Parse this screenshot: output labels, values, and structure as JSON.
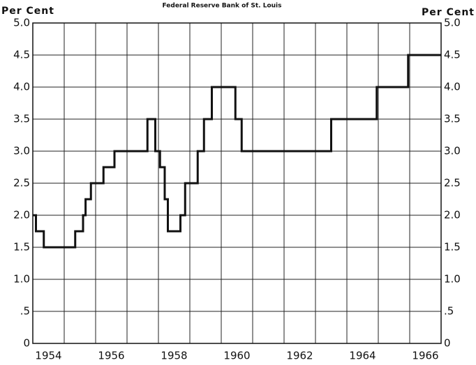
{
  "chart_data": {
    "type": "step",
    "title": "Federal Reserve Bank of St. Louis",
    "y_label": "Per Cent",
    "y2_label": "Per Cent",
    "x": [
      1954.0,
      1954.1,
      1954.35,
      1955.35,
      1955.6,
      1955.68,
      1955.85,
      1956.25,
      1956.6,
      1957.65,
      1957.9,
      1958.05,
      1958.2,
      1958.3,
      1958.7,
      1958.85,
      1959.25,
      1959.45,
      1959.7,
      1960.45,
      1960.65,
      1963.5,
      1964.95,
      1965.95,
      1967.0
    ],
    "values": [
      2.0,
      1.75,
      1.5,
      1.75,
      2.0,
      2.25,
      2.5,
      2.75,
      3.0,
      3.5,
      3.0,
      2.75,
      2.25,
      1.75,
      2.0,
      2.5,
      3.0,
      3.5,
      4.0,
      3.5,
      3.0,
      3.5,
      4.0,
      4.5,
      4.5
    ],
    "color": "#111111",
    "xlim": [
      1954,
      1967
    ],
    "xticks": [
      {
        "value": 1954.5,
        "label": "1954"
      },
      {
        "value": 1956.5,
        "label": "1956"
      },
      {
        "value": 1958.5,
        "label": "1958"
      },
      {
        "value": 1960.5,
        "label": "1960"
      },
      {
        "value": 1962.5,
        "label": "1962"
      },
      {
        "value": 1964.5,
        "label": "1964"
      },
      {
        "value": 1966.5,
        "label": "1966"
      }
    ],
    "xgrid": [
      1955,
      1956,
      1957,
      1958,
      1959,
      1960,
      1961,
      1962,
      1963,
      1964,
      1965,
      1966
    ],
    "ylim": [
      0,
      5
    ],
    "yticks": [
      0,
      {
        "value": 0.5,
        "label": ".5"
      },
      {
        "value": 1,
        "label": "1.0"
      },
      1.5,
      {
        "value": 2,
        "label": "2.0"
      },
      2.5,
      {
        "value": 3,
        "label": "3.0"
      },
      3.5,
      {
        "value": 4,
        "label": "4.0"
      },
      4.5,
      {
        "value": 5,
        "label": "5.0"
      }
    ],
    "grid": true
  }
}
